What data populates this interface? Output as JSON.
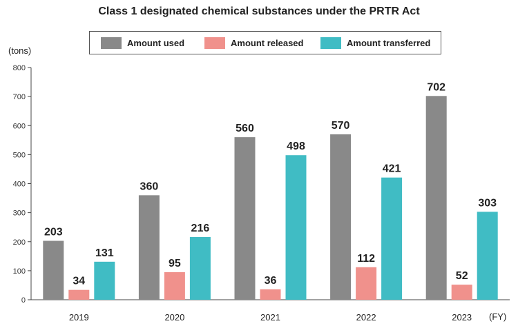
{
  "chart_data": {
    "type": "bar",
    "title": "Class 1 designated chemical substances under the PRTR Act",
    "ylabel": "(tons)",
    "xlabel": "(FY)",
    "categories": [
      "2019",
      "2020",
      "2021",
      "2022",
      "2023"
    ],
    "series": [
      {
        "name": "Amount used",
        "color": "#898989",
        "values": [
          203,
          360,
          560,
          570,
          702
        ]
      },
      {
        "name": "Amount released",
        "color": "#f0918c",
        "values": [
          34,
          95,
          36,
          112,
          52
        ]
      },
      {
        "name": "Amount transferred",
        "color": "#40bcc4",
        "values": [
          131,
          216,
          498,
          421,
          303
        ]
      }
    ],
    "ylim": [
      0,
      800
    ],
    "yticks": [
      0,
      100,
      200,
      300,
      400,
      500,
      600,
      700,
      800
    ],
    "grid": false,
    "legend_position": "top-center",
    "data_labels": true
  }
}
